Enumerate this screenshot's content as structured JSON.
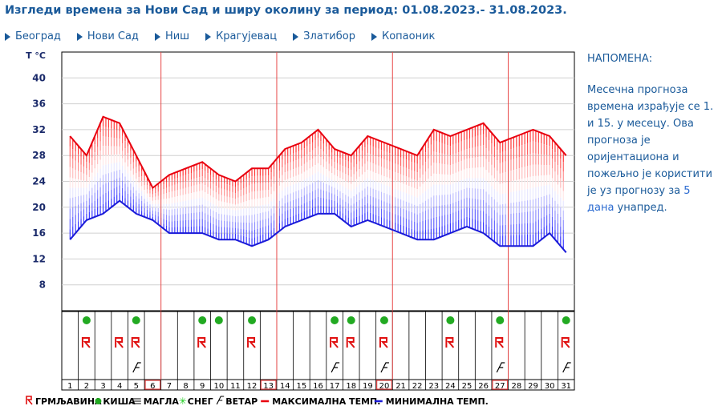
{
  "title": "Изгледи времена за Нови Сад и ширу околину за период: 01.08.2023.- 31.08.2023.",
  "nav": [
    "Београд",
    "Нови Сад",
    "Ниш",
    "Крагујевац",
    "Златибор",
    "Копаоник"
  ],
  "note": {
    "title": "НАПОМЕНА:",
    "text_before": "Месечна прогноза времена израђује се 1. и 15. у месецу. Ова прогноза је оријентациона и пожељно је користити је уз прогнозу за ",
    "link": "5 дана",
    "text_after": " унапред."
  },
  "legend": {
    "thunder": "ГРМЉАВИНА",
    "rain": "КИША",
    "fog": "МАГЛА",
    "snow": "СНЕГ",
    "wind": "ВЕТАР",
    "max": "МАКСИМАЛНА ТЕМП.",
    "min": "МИНИМАЛНА ТЕМП."
  },
  "chart_data": {
    "type": "line",
    "y_unit_label": "T °C",
    "yticks": [
      8,
      12,
      16,
      20,
      24,
      28,
      32,
      36,
      40
    ],
    "ylim": [
      4,
      44
    ],
    "x": [
      1,
      2,
      3,
      4,
      5,
      6,
      7,
      8,
      9,
      10,
      11,
      12,
      13,
      14,
      15,
      16,
      17,
      18,
      19,
      20,
      21,
      22,
      23,
      24,
      25,
      26,
      27,
      28,
      29,
      30,
      31
    ],
    "series": [
      {
        "name": "МАКСИМАЛНА ТЕМП.",
        "color": "#e8000f",
        "values": [
          31,
          28,
          34,
          33,
          28,
          23,
          25,
          26,
          27,
          25,
          24,
          26,
          26,
          29,
          30,
          32,
          29,
          28,
          31,
          30,
          29,
          28,
          32,
          31,
          32,
          33,
          30,
          31,
          32,
          31,
          28
        ]
      },
      {
        "name": "МИНИМАЛНА ТЕМП.",
        "color": "#1a1ad8",
        "values": [
          15,
          18,
          19,
          21,
          19,
          18,
          16,
          16,
          16,
          15,
          15,
          14,
          15,
          17,
          18,
          19,
          19,
          17,
          18,
          17,
          16,
          15,
          15,
          16,
          17,
          16,
          14,
          14,
          14,
          16,
          13
        ]
      }
    ],
    "highlighted_days": [
      6,
      13,
      20,
      27
    ],
    "weekly_lines_after_days": [
      6,
      13,
      20,
      27
    ],
    "rain_days": [
      2,
      5,
      9,
      10,
      12,
      17,
      18,
      20,
      24,
      27,
      31
    ],
    "thunder_days": [
      2,
      4,
      5,
      9,
      12,
      17,
      18,
      20,
      24,
      27,
      31
    ],
    "wind_days": [
      5,
      17,
      20,
      27,
      31
    ],
    "grid": true
  }
}
